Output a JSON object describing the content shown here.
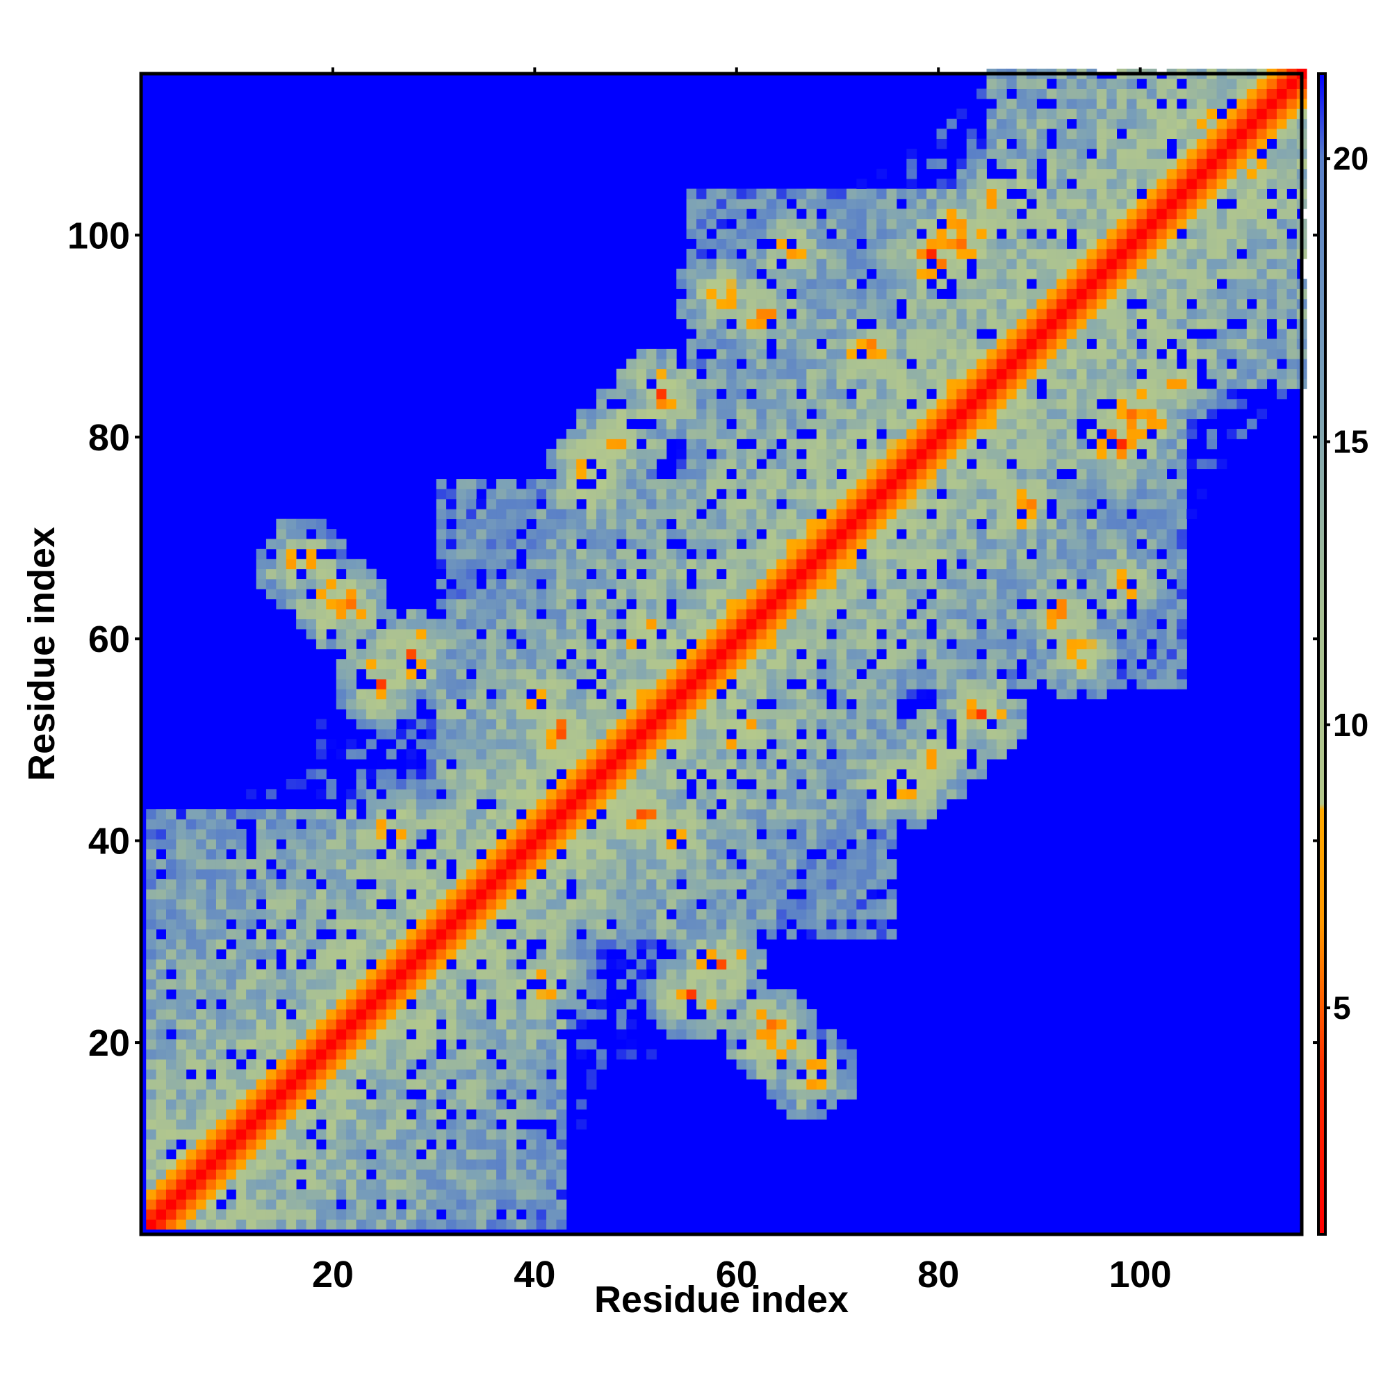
{
  "chart_data": {
    "type": "heatmap",
    "title": "",
    "xlabel": "Residue index",
    "ylabel": "Residue index",
    "n": 116,
    "xlim": [
      1,
      116
    ],
    "ylim": [
      1,
      116
    ],
    "x_ticks": [
      20,
      40,
      60,
      80,
      100
    ],
    "y_ticks": [
      20,
      40,
      60,
      80,
      100
    ],
    "x_tick_labels": [
      "20",
      "40",
      "60",
      "80",
      "100"
    ],
    "y_tick_labels": [
      "20",
      "40",
      "60",
      "80",
      "100"
    ],
    "value_range": [
      1,
      21.5
    ],
    "colorbar": {
      "ticks": [
        5,
        10,
        15,
        20
      ],
      "tick_labels": [
        "5",
        "10",
        "15",
        "20"
      ],
      "stops": [
        {
          "value": 1,
          "color": "#ff0000"
        },
        {
          "value": 4,
          "color": "#ff3300"
        },
        {
          "value": 6.5,
          "color": "#ff9900"
        },
        {
          "value": 8.5,
          "color": "#ffaa00"
        },
        {
          "value": 8.6,
          "color": "#b4c88c"
        },
        {
          "value": 12,
          "color": "#a8c094"
        },
        {
          "value": 16,
          "color": "#7aa0b8"
        },
        {
          "value": 20,
          "color": "#5a80c8"
        },
        {
          "value": 21.5,
          "color": "#0000ff"
        }
      ]
    },
    "colors": {
      "contact": "#ff0000",
      "near_contact": "#ff9900",
      "medium": "#a8c094",
      "far": "#6f94c4",
      "no_contact": "#0000ff"
    },
    "distance_model": {
      "metric": "residue-pair distance matrix",
      "cutoff": 21.5,
      "diagonal_band_values": [
        {
          "offset": 0,
          "value": 1.5
        },
        {
          "offset": 1,
          "value": 3.5
        },
        {
          "offset": 2,
          "value": 5.5
        },
        {
          "offset": 3,
          "value": 7.5
        }
      ],
      "compact_domains": [
        {
          "start": 1,
          "end": 42
        },
        {
          "start": 30,
          "end": 75
        },
        {
          "start": 55,
          "end": 104
        },
        {
          "start": 85,
          "end": 116
        }
      ],
      "long_range_contacts": [
        {
          "i": 20,
          "j": 63,
          "value": 6
        },
        {
          "i": 24,
          "j": 55,
          "value": 7
        },
        {
          "i": 27,
          "j": 58,
          "value": 7
        },
        {
          "i": 16,
          "j": 67,
          "value": 8
        },
        {
          "i": 45,
          "j": 76,
          "value": 6
        },
        {
          "i": 48,
          "j": 80,
          "value": 7
        },
        {
          "i": 52,
          "j": 84,
          "value": 7
        },
        {
          "i": 58,
          "j": 94,
          "value": 8
        },
        {
          "i": 62,
          "j": 92,
          "value": 7
        },
        {
          "i": 65,
          "j": 98,
          "value": 8
        },
        {
          "i": 79,
          "j": 98,
          "value": 6
        },
        {
          "i": 82,
          "j": 100,
          "value": 6
        },
        {
          "i": 86,
          "j": 104,
          "value": 7
        },
        {
          "i": 73,
          "j": 88,
          "value": 7
        },
        {
          "i": 40,
          "j": 53,
          "value": 7
        },
        {
          "i": 42,
          "j": 50,
          "value": 6
        },
        {
          "i": 50,
          "j": 60,
          "value": 7
        },
        {
          "i": 25,
          "j": 40,
          "value": 7
        }
      ]
    }
  }
}
